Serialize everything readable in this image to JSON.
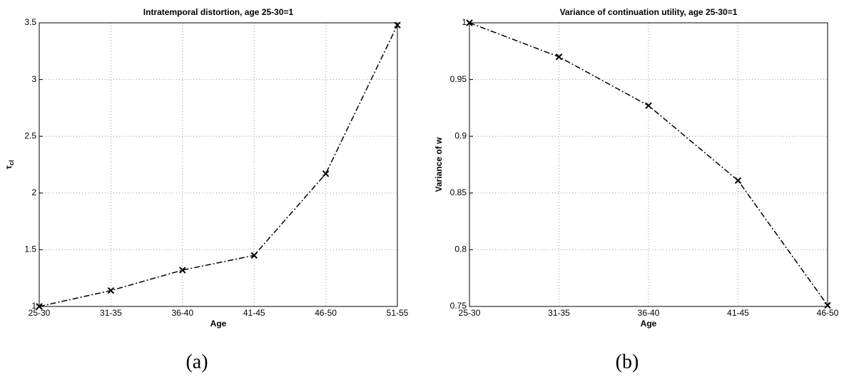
{
  "chart_data": [
    {
      "type": "line",
      "title": "Intratemporal distortion, age 25-30=1",
      "xlabel": "Age",
      "ylabel": "τ",
      "ylabel_subscript": "cl",
      "categories": [
        "25-30",
        "31-35",
        "36-40",
        "41-45",
        "46-50",
        "51-55"
      ],
      "values": [
        1,
        1.14,
        1.32,
        1.45,
        2.17,
        3.48
      ],
      "color": "#000000",
      "ylim": [
        1,
        3.5
      ],
      "yticks": [
        1,
        1.5,
        2,
        2.5,
        3,
        3.5
      ],
      "grid": true,
      "caption": "(a)"
    },
    {
      "type": "line",
      "title": "Variance of continuation utility, age 25-30=1",
      "xlabel": "Age",
      "ylabel": "Variance of w",
      "categories": [
        "25-30",
        "31-35",
        "36-40",
        "41-45",
        "46-50"
      ],
      "values": [
        1,
        0.97,
        0.927,
        0.861,
        0.751
      ],
      "color": "#000000",
      "ylim": [
        0.75,
        1
      ],
      "yticks": [
        0.75,
        0.8,
        0.85,
        0.9,
        0.95,
        1
      ],
      "grid": true,
      "caption": "(b)"
    }
  ]
}
